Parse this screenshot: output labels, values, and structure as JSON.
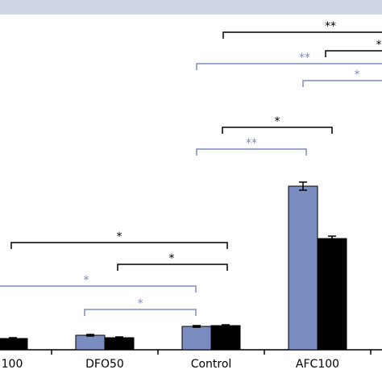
{
  "chart_data": {
    "type": "bar",
    "categories": [
      "100",
      "DFO50",
      "Control",
      "AFC100",
      null
    ],
    "series": [
      {
        "color": "#7b8cc0",
        "values": [
          null,
          18,
          29,
          203,
          null
        ],
        "errors": [
          null,
          1,
          1,
          5,
          null
        ]
      },
      {
        "color": "#000000",
        "values": [
          14,
          15,
          30,
          138,
          null
        ],
        "errors": [
          1,
          1,
          1,
          3,
          null
        ]
      }
    ],
    "annotations": [
      {
        "text": "**",
        "color": "#000000"
      },
      {
        "text": "*",
        "color": "#000000"
      },
      {
        "text": "**",
        "color": "#7b8cc0"
      },
      {
        "text": "*",
        "color": "#7b8cc0"
      },
      {
        "text": "*",
        "color": "#000000"
      },
      {
        "text": "**",
        "color": "#7b8cc0"
      },
      {
        "text": "*",
        "color": "#000000"
      },
      {
        "text": "*",
        "color": "#000000"
      },
      {
        "text": "*",
        "color": "#7b8cc0"
      },
      {
        "text": "*",
        "color": "#7b8cc0"
      }
    ]
  }
}
